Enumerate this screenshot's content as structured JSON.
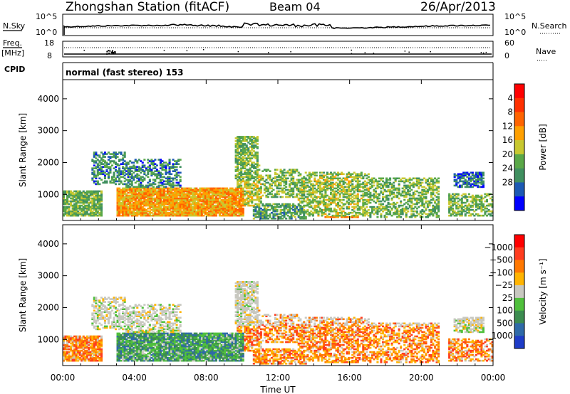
{
  "header": {
    "title": "Zhongshan Station (fitACF)",
    "beam": "Beam 04",
    "date": "26/Apr/2013"
  },
  "top_panels": {
    "nsky_label": "N.Sky",
    "nsearch_label": "N.Search",
    "nsky_scale": [
      "10^5",
      "10^0"
    ],
    "nsearch_scale": [
      "10^5",
      "10^0"
    ],
    "freq_label": "Freq.",
    "freq_unit": "[MHz]",
    "freq_scale": [
      "18",
      "8"
    ],
    "nave_label": "Nave",
    "nave_scale": [
      "60",
      "0"
    ],
    "cpid_label": "CPID",
    "cpid_value": "normal (fast stereo) 153"
  },
  "chart_data": [
    {
      "type": "heatmap",
      "title": "",
      "ylabel": "Slant Range [km]",
      "xlabel": "",
      "ylim": [
        180,
        4600
      ],
      "yticks": [
        "1000",
        "2000",
        "3000",
        "4000"
      ],
      "xlim_hours": [
        0,
        24
      ],
      "colorbar": {
        "label": "Power [dB]",
        "ticks": [
          "4",
          "8",
          "12",
          "16",
          "20",
          "24",
          "28"
        ],
        "colors": [
          "#0000ff",
          "#1c59b4",
          "#409060",
          "#5aa848",
          "#c8c830",
          "#ffa000",
          "#ff6400",
          "#ff3000",
          "#ff0000"
        ]
      }
    },
    {
      "type": "heatmap",
      "title": "",
      "ylabel": "Slant Range [km]",
      "xlabel": "Time UT",
      "ylim": [
        180,
        4600
      ],
      "yticks": [
        "1000",
        "2000",
        "3000",
        "4000"
      ],
      "xticks": [
        "00:00",
        "04:00",
        "08:00",
        "12:00",
        "16:00",
        "20:00",
        "00:00"
      ],
      "colorbar": {
        "label": "Velocity [m s⁻¹]",
        "ticks": [
          "1000",
          "500",
          "100",
          "25",
          "−25",
          "−100",
          "−500",
          "−1000"
        ],
        "colors": [
          "#1e3cc8",
          "#2f6aa8",
          "#3c8c50",
          "#50c03c",
          "#c8c8c0",
          "#ffb400",
          "#ff7800",
          "#ff3c1e",
          "#ff0000"
        ]
      }
    }
  ]
}
